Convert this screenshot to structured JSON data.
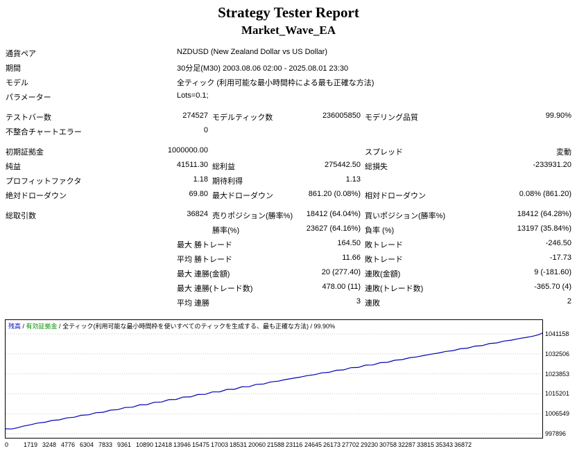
{
  "title": "Strategy Tester Report",
  "subtitle": "Market_Wave_EA",
  "report": {
    "rows": [
      {
        "cells": [
          {
            "t": "通貨ペア",
            "c": "c1"
          },
          {
            "t": "NZDUSD (New Zealand Dollar vs US Dollar)",
            "c": "c2l"
          }
        ]
      },
      {
        "cells": [
          {
            "t": "期間",
            "c": "c1"
          },
          {
            "t": "30分足(M30) 2003.08.06 02:00 - 2025.08.01 23:30",
            "c": "c2l"
          }
        ]
      },
      {
        "cells": [
          {
            "t": "モデル",
            "c": "c1"
          },
          {
            "t": "全ティック (利用可能な最小時間枠による最も正確な方法)",
            "c": "c2l"
          }
        ]
      },
      {
        "cells": [
          {
            "t": "パラメーター",
            "c": "c1"
          },
          {
            "t": "Lots=0.1;",
            "c": "c2l"
          }
        ]
      },
      {
        "spacer": true
      },
      {
        "cells": [
          {
            "t": "テストバー数",
            "c": "c1"
          },
          {
            "t": "274527",
            "c": "c2r"
          },
          {
            "t": "モデルティック数",
            "c": "c3"
          },
          {
            "t": "236005850",
            "c": "c4r"
          },
          {
            "t": "モデリング品質",
            "c": "c5"
          },
          {
            "t": "99.90%",
            "c": "c6r"
          }
        ]
      },
      {
        "cells": [
          {
            "t": "不整合チャートエラー",
            "c": "c1"
          },
          {
            "t": "0",
            "c": "c2r"
          }
        ]
      },
      {
        "spacer": true
      },
      {
        "cells": [
          {
            "t": "初期証拠金",
            "c": "c1"
          },
          {
            "t": "1000000.00",
            "c": "c2r"
          },
          {
            "t": "スプレッド",
            "c": "c5"
          },
          {
            "t": "変動",
            "c": "c6r"
          }
        ]
      },
      {
        "cells": [
          {
            "t": "純益",
            "c": "c1"
          },
          {
            "t": "41511.30",
            "c": "c2r"
          },
          {
            "t": "総利益",
            "c": "c3"
          },
          {
            "t": "275442.50",
            "c": "c4r"
          },
          {
            "t": "総損失",
            "c": "c5"
          },
          {
            "t": "-233931.20",
            "c": "c6r"
          }
        ]
      },
      {
        "cells": [
          {
            "t": "プロフィットファクタ",
            "c": "c1"
          },
          {
            "t": "1.18",
            "c": "c2r"
          },
          {
            "t": "期待利得",
            "c": "c3"
          },
          {
            "t": "1.13",
            "c": "c4r"
          }
        ]
      },
      {
        "cells": [
          {
            "t": "絶対ドローダウン",
            "c": "c1"
          },
          {
            "t": "69.80",
            "c": "c2r"
          },
          {
            "t": "最大ドローダウン",
            "c": "c3"
          },
          {
            "t": "861.20 (0.08%)",
            "c": "c4r"
          },
          {
            "t": "相対ドローダウン",
            "c": "c5"
          },
          {
            "t": "0.08% (861.20)",
            "c": "c6r"
          }
        ]
      },
      {
        "spacer": true
      },
      {
        "cells": [
          {
            "t": "総取引数",
            "c": "c1"
          },
          {
            "t": "36824",
            "c": "c2r"
          },
          {
            "t": "売りポジション(勝率%)",
            "c": "c3"
          },
          {
            "t": "18412 (64.04%)",
            "c": "c4r"
          },
          {
            "t": "買いポジション(勝率%)",
            "c": "c5"
          },
          {
            "t": "18412 (64.28%)",
            "c": "c6r"
          }
        ]
      },
      {
        "cells": [
          {
            "t": "勝率(%)",
            "c": "c3"
          },
          {
            "t": "23627 (64.16%)",
            "c": "c4r"
          },
          {
            "t": "負率 (%)",
            "c": "c5"
          },
          {
            "t": "13197 (35.84%)",
            "c": "c6r"
          }
        ]
      },
      {
        "cells": [
          {
            "t": "最大 勝トレード",
            "c": "c2l"
          },
          {
            "t": "164.50",
            "c": "c4r"
          },
          {
            "t": "敗トレード",
            "c": "c5"
          },
          {
            "t": "-246.50",
            "c": "c6r"
          }
        ]
      },
      {
        "cells": [
          {
            "t": "平均 勝トレード",
            "c": "c2l"
          },
          {
            "t": "11.66",
            "c": "c4r"
          },
          {
            "t": "敗トレード",
            "c": "c5"
          },
          {
            "t": "-17.73",
            "c": "c6r"
          }
        ]
      },
      {
        "cells": [
          {
            "t": "最大 連勝(金額)",
            "c": "c2l"
          },
          {
            "t": "20 (277.40)",
            "c": "c4r"
          },
          {
            "t": "連敗(金額)",
            "c": "c5"
          },
          {
            "t": "9 (-181.60)",
            "c": "c6r"
          }
        ]
      },
      {
        "cells": [
          {
            "t": "最大 連勝(トレード数)",
            "c": "c2l"
          },
          {
            "t": "478.00 (11)",
            "c": "c4r"
          },
          {
            "t": "連敗(トレード数)",
            "c": "c5"
          },
          {
            "t": "-365.70 (4)",
            "c": "c6r"
          }
        ]
      },
      {
        "cells": [
          {
            "t": "平均 連勝",
            "c": "c2l"
          },
          {
            "t": "3",
            "c": "c4r"
          },
          {
            "t": "連敗",
            "c": "c5"
          },
          {
            "t": "2",
            "c": "c6r"
          }
        ]
      }
    ]
  },
  "chart_data": {
    "type": "line",
    "title": "",
    "xlabel": "",
    "ylabel": "",
    "grid": true,
    "legend_position": "top-left",
    "legend_parts": [
      {
        "t": "残高",
        "color": "#0000cc"
      },
      {
        "t": " / ",
        "color": "#000000"
      },
      {
        "t": "有効証拠金",
        "color": "#009000"
      },
      {
        "t": " / ",
        "color": "#000000"
      },
      {
        "t": "全ティック(利用可能な最小時間枠を使いすべてのティックを生成する、最も正確な方法) / 99.90%",
        "color": "#000000"
      }
    ],
    "x_range": [
      0,
      36824
    ],
    "y_ticks": [
      1041158,
      1032506,
      1023853,
      1015201,
      1006549,
      997896
    ],
    "x_ticks": [
      0,
      1719,
      3248,
      4776,
      6304,
      7833,
      9361,
      10890,
      12418,
      13946,
      15475,
      17003,
      18531,
      20060,
      21588,
      23116,
      24645,
      26173,
      27702,
      29230,
      30758,
      32287,
      33815,
      35343,
      36872
    ],
    "series": [
      {
        "name": "残高",
        "color": "#0000b4",
        "points": [
          [
            0,
            1000000
          ],
          [
            400,
            999935
          ],
          [
            800,
            1000420
          ],
          [
            1200,
            1001150
          ],
          [
            1700,
            1001750
          ],
          [
            2200,
            1002480
          ],
          [
            2700,
            1002860
          ],
          [
            3200,
            1003620
          ],
          [
            3700,
            1003890
          ],
          [
            4200,
            1004760
          ],
          [
            4700,
            1005020
          ],
          [
            5200,
            1005900
          ],
          [
            5700,
            1006080
          ],
          [
            6200,
            1007010
          ],
          [
            6700,
            1007190
          ],
          [
            7200,
            1008120
          ],
          [
            7700,
            1008310
          ],
          [
            8200,
            1009260
          ],
          [
            8700,
            1009380
          ],
          [
            9200,
            1010400
          ],
          [
            9700,
            1010480
          ],
          [
            10200,
            1011520
          ],
          [
            10700,
            1011620
          ],
          [
            11200,
            1012650
          ],
          [
            11700,
            1012740
          ],
          [
            12200,
            1013780
          ],
          [
            12700,
            1013850
          ],
          [
            13200,
            1014900
          ],
          [
            13700,
            1014950
          ],
          [
            14200,
            1016010
          ],
          [
            14700,
            1016050
          ],
          [
            15200,
            1017120
          ],
          [
            15700,
            1017130
          ],
          [
            16200,
            1018200
          ],
          [
            16700,
            1018260
          ],
          [
            17200,
            1019280
          ],
          [
            17700,
            1019430
          ],
          [
            18200,
            1020340
          ],
          [
            18700,
            1020680
          ],
          [
            19200,
            1021360
          ],
          [
            19700,
            1021900
          ],
          [
            20200,
            1022420
          ],
          [
            20700,
            1023060
          ],
          [
            21200,
            1023480
          ],
          [
            21700,
            1024260
          ],
          [
            22200,
            1024520
          ],
          [
            22700,
            1025400
          ],
          [
            23200,
            1025560
          ],
          [
            23700,
            1026540
          ],
          [
            24200,
            1026620
          ],
          [
            24700,
            1027650
          ],
          [
            25200,
            1027710
          ],
          [
            25700,
            1028700
          ],
          [
            26200,
            1028830
          ],
          [
            26700,
            1029740
          ],
          [
            27200,
            1030000
          ],
          [
            27700,
            1030780
          ],
          [
            28200,
            1031180
          ],
          [
            28700,
            1031810
          ],
          [
            29200,
            1032380
          ],
          [
            29700,
            1032860
          ],
          [
            30200,
            1033560
          ],
          [
            30700,
            1033920
          ],
          [
            31200,
            1034720
          ],
          [
            31700,
            1035000
          ],
          [
            32200,
            1035880
          ],
          [
            32700,
            1036080
          ],
          [
            33200,
            1036970
          ],
          [
            33700,
            1037260
          ],
          [
            34200,
            1038050
          ],
          [
            34700,
            1038440
          ],
          [
            35200,
            1039120
          ],
          [
            35700,
            1039620
          ],
          [
            36200,
            1040200
          ],
          [
            36600,
            1040900
          ],
          [
            36824,
            1041510
          ]
        ]
      }
    ]
  }
}
